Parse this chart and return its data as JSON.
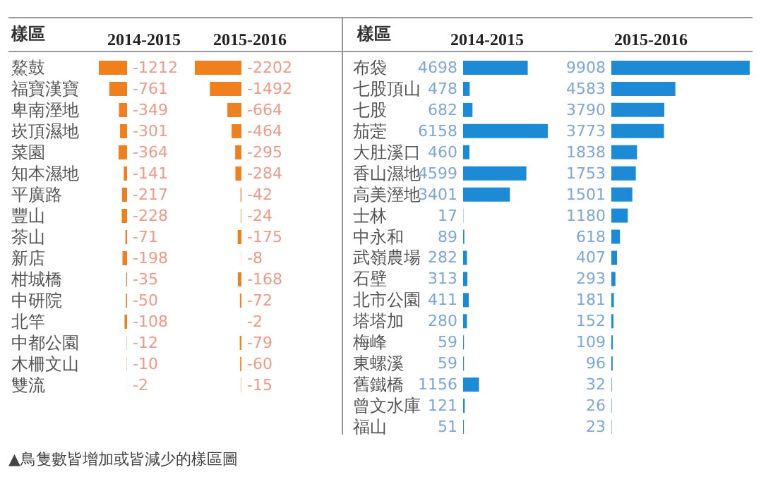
{
  "chart_data": [
    {
      "type": "bar",
      "orientation": "horizontal",
      "title": "2014-2015",
      "ylabel": "樣區",
      "data_labels": true,
      "categories": [
        "鰲鼓",
        "福寶漢寶",
        "卑南溼地",
        "崁頂濕地",
        "菜園",
        "知本濕地",
        "平廣路",
        "豐山",
        "茶山",
        "新店",
        "柑城橋",
        "中研院",
        "北竿",
        "中都公園",
        "木柵文山",
        "雙流"
      ],
      "series": [
        {
          "color": "#f0801e",
          "values": [
            -1212,
            -761,
            -349,
            -301,
            -364,
            -141,
            -217,
            -228,
            -71,
            -198,
            -35,
            -50,
            -108,
            -12,
            -10,
            -2
          ]
        }
      ],
      "annotations": [
        "▲鳥隻數皆增加或皆減少的樣區圖"
      ]
    },
    {
      "type": "bar",
      "orientation": "horizontal",
      "title": "2015-2016",
      "data_labels": true,
      "categories": [
        null,
        null,
        null,
        null,
        null,
        null,
        null,
        null,
        null,
        null,
        null,
        null,
        null,
        null,
        null,
        null
      ],
      "series": [
        {
          "color": "#f0801e",
          "values": [
            -2202,
            -1492,
            -664,
            -464,
            -295,
            -284,
            -42,
            -24,
            -175,
            -8,
            -168,
            -72,
            -2,
            -79,
            -60,
            -15
          ]
        }
      ]
    },
    {
      "type": "bar",
      "orientation": "horizontal",
      "title": "2014-2015",
      "ylabel": "樣區",
      "data_labels": true,
      "categories": [
        "布袋",
        "七股頂山",
        "七股",
        "茄萣",
        "大肚溪口",
        "香山濕地",
        "高美溼地",
        "士林",
        "中永和",
        "武嶺農場",
        "石壁",
        "北市公園",
        "塔塔加",
        "梅峰",
        "東螺溪",
        "舊鐵橋",
        "曾文水庫",
        "福山"
      ],
      "series": [
        {
          "color": "#1c8ad4",
          "values": [
            4698,
            478,
            682,
            6158,
            460,
            4599,
            3401,
            17,
            89,
            282,
            313,
            411,
            280,
            59,
            59,
            1156,
            121,
            51
          ]
        }
      ]
    },
    {
      "type": "bar",
      "orientation": "horizontal",
      "title": "2015-2016",
      "data_labels": true,
      "categories": [
        null,
        null,
        null,
        null,
        null,
        null,
        null,
        null,
        null,
        null,
        null,
        null,
        null,
        null,
        null,
        null,
        null,
        null
      ],
      "series": [
        {
          "color": "#1c8ad4",
          "values": [
            9908,
            4583,
            3790,
            3773,
            1838,
            1753,
            1501,
            1180,
            618,
            407,
            293,
            181,
            152,
            109,
            96,
            32,
            26,
            23
          ]
        }
      ]
    }
  ]
}
